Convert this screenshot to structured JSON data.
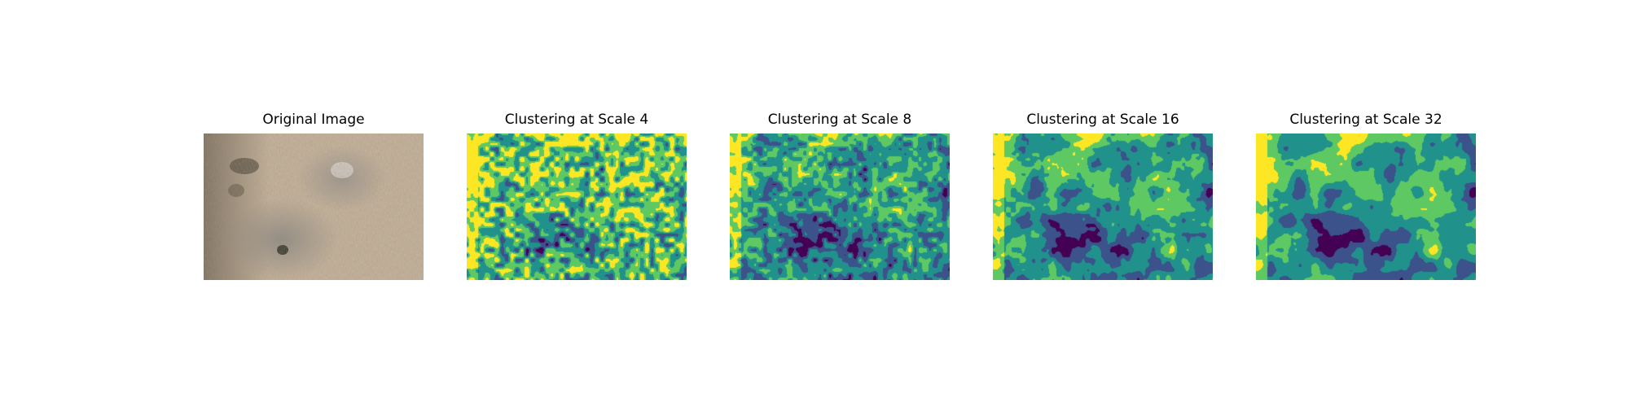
{
  "figure": {
    "panels": [
      {
        "title": "Original Image",
        "kind": "photo"
      },
      {
        "title": "Clustering at Scale 4",
        "kind": "cluster",
        "scale": 4
      },
      {
        "title": "Clustering at Scale 8",
        "kind": "cluster",
        "scale": 8
      },
      {
        "title": "Clustering at Scale 16",
        "kind": "cluster",
        "scale": 16
      },
      {
        "title": "Clustering at Scale 32",
        "kind": "cluster",
        "scale": 32
      }
    ],
    "cluster_colors": [
      "#440154",
      "#3b528b",
      "#21918c",
      "#5ec962",
      "#fde725"
    ],
    "photo_colors": {
      "skin": "#c8b49a",
      "skin_light": "#d9cbb4",
      "shadow": "#8e826f",
      "lesion": "#7e7a75",
      "dark_spot": "#3a3a2a"
    }
  }
}
